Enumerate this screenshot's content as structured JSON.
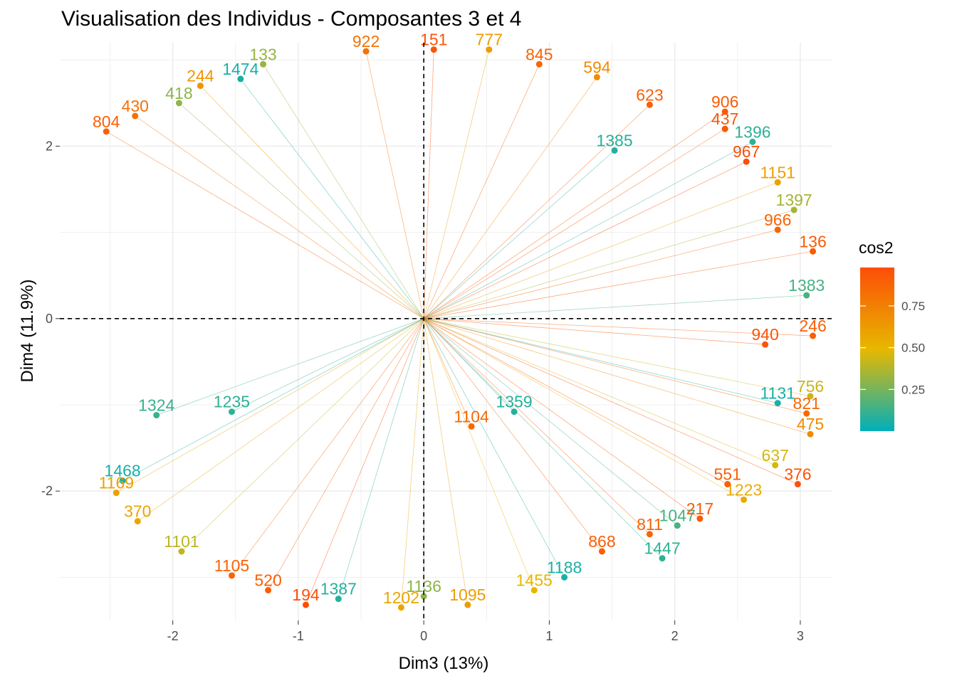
{
  "chart_data": {
    "type": "scatter",
    "title": "Visualisation des Individus - Composantes 3 et 4",
    "xlabel": "Dim3 (13%)",
    "ylabel": "Dim4 (11.9%)",
    "xlim": [
      -2.9,
      3.25
    ],
    "ylim": [
      -3.5,
      3.2
    ],
    "x_ticks": [
      -2,
      -1,
      0,
      1,
      2,
      3
    ],
    "y_ticks": [
      -2,
      0,
      2
    ],
    "x_tick_labels": [
      "-2",
      "-1",
      "0",
      "1",
      "2",
      "3"
    ],
    "y_tick_labels": [
      "-2",
      "0",
      "2"
    ],
    "reference_lines": {
      "x": 0,
      "y": 0,
      "style": "dashed"
    },
    "grid": true,
    "legend": {
      "title": "cos2",
      "position": "right",
      "type": "colorbar",
      "ticks": [
        0.25,
        0.5,
        0.75
      ],
      "tick_labels": [
        "0.25",
        "0.50",
        "0.75"
      ],
      "range": [
        0.0,
        0.98
      ],
      "colors": [
        "#00AFBB",
        "#E7B800",
        "#FC4E07"
      ]
    },
    "points": [
      {
        "label": "922",
        "x": -0.46,
        "y": 3.1,
        "cos2": 0.82
      },
      {
        "label": "151",
        "x": 0.08,
        "y": 3.12,
        "cos2": 0.95
      },
      {
        "label": "777",
        "x": 0.52,
        "y": 3.12,
        "cos2": 0.62
      },
      {
        "label": "845",
        "x": 0.92,
        "y": 2.95,
        "cos2": 0.88
      },
      {
        "label": "1474",
        "x": -1.46,
        "y": 2.78,
        "cos2": 0.05
      },
      {
        "label": "133",
        "x": -1.28,
        "y": 2.95,
        "cos2": 0.32
      },
      {
        "label": "594",
        "x": 1.38,
        "y": 2.8,
        "cos2": 0.7
      },
      {
        "label": "623",
        "x": 1.8,
        "y": 2.48,
        "cos2": 0.9
      },
      {
        "label": "906",
        "x": 2.4,
        "y": 2.4,
        "cos2": 0.92
      },
      {
        "label": "437",
        "x": 2.4,
        "y": 2.2,
        "cos2": 0.93
      },
      {
        "label": "1396",
        "x": 2.62,
        "y": 2.05,
        "cos2": 0.1
      },
      {
        "label": "967",
        "x": 2.57,
        "y": 1.82,
        "cos2": 0.98
      },
      {
        "label": "1385",
        "x": 1.52,
        "y": 1.95,
        "cos2": 0.08
      },
      {
        "label": "804",
        "x": -2.53,
        "y": 2.17,
        "cos2": 0.9
      },
      {
        "label": "430",
        "x": -2.3,
        "y": 2.35,
        "cos2": 0.82
      },
      {
        "label": "244",
        "x": -1.78,
        "y": 2.7,
        "cos2": 0.65
      },
      {
        "label": "418",
        "x": -1.95,
        "y": 2.5,
        "cos2": 0.3
      },
      {
        "label": "1151",
        "x": 2.82,
        "y": 1.58,
        "cos2": 0.6
      },
      {
        "label": "1397",
        "x": 2.95,
        "y": 1.26,
        "cos2": 0.35
      },
      {
        "label": "966",
        "x": 2.82,
        "y": 1.03,
        "cos2": 0.88
      },
      {
        "label": "136",
        "x": 3.1,
        "y": 0.78,
        "cos2": 0.92
      },
      {
        "label": "1383",
        "x": 3.05,
        "y": 0.27,
        "cos2": 0.15
      },
      {
        "label": "940",
        "x": 2.72,
        "y": -0.3,
        "cos2": 0.95
      },
      {
        "label": "246",
        "x": 3.1,
        "y": -0.2,
        "cos2": 0.9
      },
      {
        "label": "756",
        "x": 3.08,
        "y": -0.9,
        "cos2": 0.42
      },
      {
        "label": "1131",
        "x": 2.82,
        "y": -0.98,
        "cos2": 0.05
      },
      {
        "label": "821",
        "x": 3.05,
        "y": -1.1,
        "cos2": 0.85
      },
      {
        "label": "475",
        "x": 3.08,
        "y": -1.34,
        "cos2": 0.7
      },
      {
        "label": "637",
        "x": 2.8,
        "y": -1.7,
        "cos2": 0.45
      },
      {
        "label": "376",
        "x": 2.98,
        "y": -1.92,
        "cos2": 0.96
      },
      {
        "label": "1223",
        "x": 2.55,
        "y": -2.1,
        "cos2": 0.55
      },
      {
        "label": "1468",
        "x": -2.4,
        "y": -1.88,
        "cos2": 0.05
      },
      {
        "label": "1169",
        "x": -2.45,
        "y": -2.02,
        "cos2": 0.6
      },
      {
        "label": "370",
        "x": -2.28,
        "y": -2.35,
        "cos2": 0.58
      },
      {
        "label": "1101",
        "x": -1.93,
        "y": -2.7,
        "cos2": 0.4
      },
      {
        "label": "1105",
        "x": -1.53,
        "y": -2.98,
        "cos2": 0.88
      },
      {
        "label": "520",
        "x": -1.24,
        "y": -3.15,
        "cos2": 0.9
      },
      {
        "label": "194",
        "x": -0.94,
        "y": -3.32,
        "cos2": 0.97
      },
      {
        "label": "1387",
        "x": -0.68,
        "y": -3.25,
        "cos2": 0.08
      },
      {
        "label": "1202",
        "x": -0.18,
        "y": -3.35,
        "cos2": 0.58
      },
      {
        "label": "1136",
        "x": 0.0,
        "y": -3.22,
        "cos2": 0.3
      },
      {
        "label": "1095",
        "x": 0.35,
        "y": -3.32,
        "cos2": 0.62
      },
      {
        "label": "1455",
        "x": 0.88,
        "y": -3.15,
        "cos2": 0.5
      },
      {
        "label": "1188",
        "x": 1.12,
        "y": -3.0,
        "cos2": 0.06
      },
      {
        "label": "868",
        "x": 1.42,
        "y": -2.7,
        "cos2": 0.9
      },
      {
        "label": "1447",
        "x": 1.9,
        "y": -2.78,
        "cos2": 0.1
      },
      {
        "label": "811",
        "x": 1.8,
        "y": -2.5,
        "cos2": 0.88
      },
      {
        "label": "1047",
        "x": 2.02,
        "y": -2.4,
        "cos2": 0.15
      },
      {
        "label": "217",
        "x": 2.2,
        "y": -2.32,
        "cos2": 0.92
      },
      {
        "label": "551",
        "x": 2.42,
        "y": -1.92,
        "cos2": 0.9
      },
      {
        "label": "1359",
        "x": 0.72,
        "y": -1.08,
        "cos2": 0.08
      },
      {
        "label": "1104",
        "x": 0.38,
        "y": -1.25,
        "cos2": 0.85
      },
      {
        "label": "1235",
        "x": -1.53,
        "y": -1.08,
        "cos2": 0.1
      },
      {
        "label": "1324",
        "x": -2.13,
        "y": -1.12,
        "cos2": 0.12
      }
    ]
  }
}
